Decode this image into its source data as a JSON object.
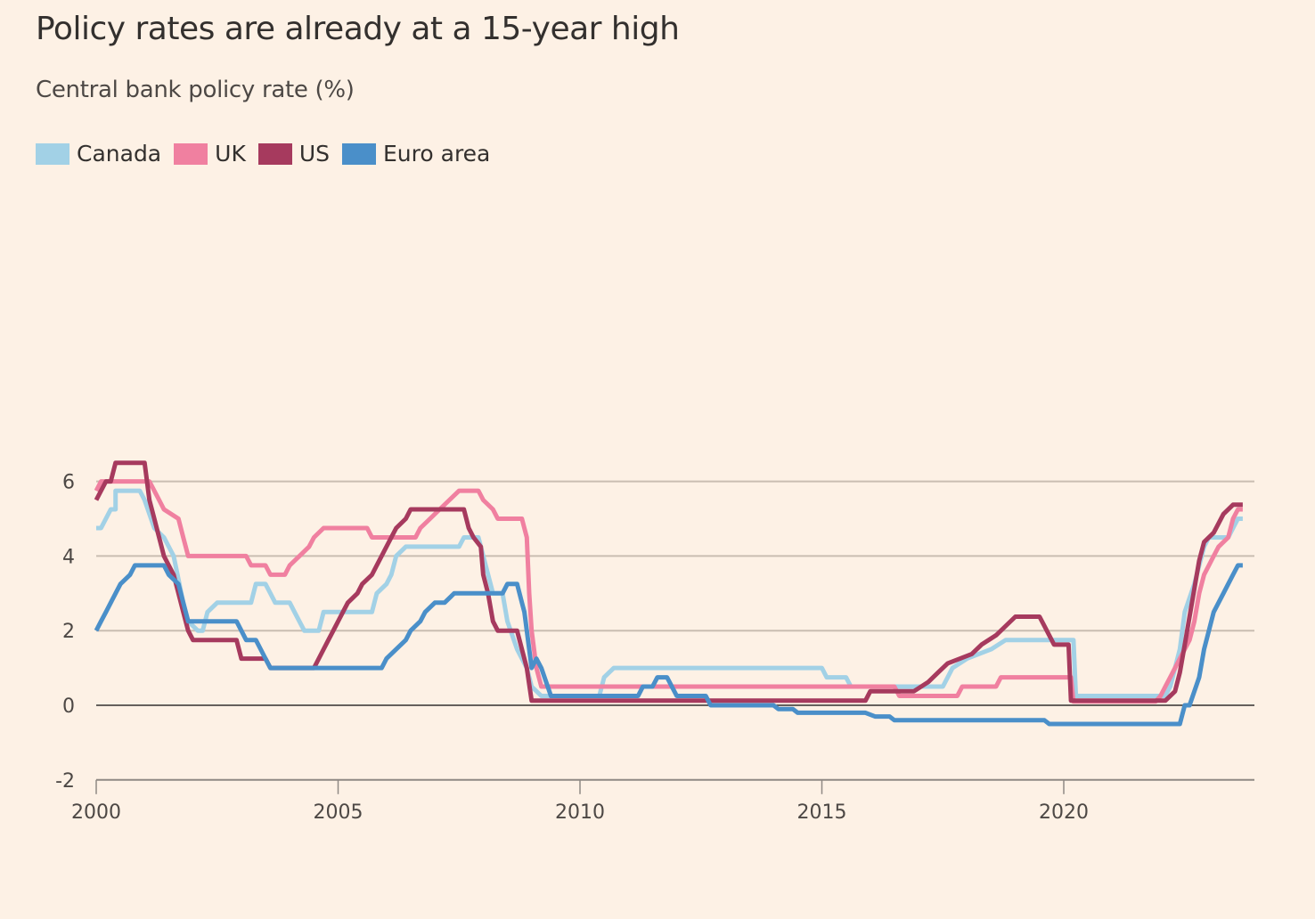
{
  "chart_data": {
    "type": "line",
    "title": "Policy rates are already at a 15-year high",
    "subtitle": "Central bank policy rate (%)",
    "xlabel": "",
    "ylabel": "",
    "xlim": [
      2000,
      2023.7
    ],
    "ylim": [
      -2,
      7
    ],
    "x_ticks": [
      2000,
      2005,
      2010,
      2015,
      2020
    ],
    "x_tick_labels": [
      "2000",
      "2005",
      "2010",
      "2015",
      "2020"
    ],
    "y_ticks": [
      -2,
      0,
      2,
      4,
      6
    ],
    "y_tick_labels": [
      "-2",
      "0",
      "2",
      "4",
      "6"
    ],
    "grid": true,
    "legend_position": "top-left",
    "series": [
      {
        "name": "Canada",
        "color": "#a2d1e6",
        "points": [
          [
            2000.0,
            4.75
          ],
          [
            2000.1,
            4.75
          ],
          [
            2000.3,
            5.25
          ],
          [
            2000.4,
            5.25
          ],
          [
            2000.4,
            5.75
          ],
          [
            2000.9,
            5.75
          ],
          [
            2001.0,
            5.5
          ],
          [
            2001.2,
            4.75
          ],
          [
            2001.4,
            4.5
          ],
          [
            2001.6,
            4.0
          ],
          [
            2001.8,
            2.75
          ],
          [
            2001.9,
            2.25
          ],
          [
            2002.1,
            2.0
          ],
          [
            2002.2,
            2.0
          ],
          [
            2002.3,
            2.5
          ],
          [
            2002.5,
            2.75
          ],
          [
            2003.2,
            2.75
          ],
          [
            2003.3,
            3.25
          ],
          [
            2003.5,
            3.25
          ],
          [
            2003.6,
            3.0
          ],
          [
            2003.7,
            2.75
          ],
          [
            2004.0,
            2.75
          ],
          [
            2004.1,
            2.5
          ],
          [
            2004.3,
            2.0
          ],
          [
            2004.6,
            2.0
          ],
          [
            2004.7,
            2.5
          ],
          [
            2005.7,
            2.5
          ],
          [
            2005.8,
            3.0
          ],
          [
            2006.0,
            3.25
          ],
          [
            2006.1,
            3.5
          ],
          [
            2006.2,
            4.0
          ],
          [
            2006.4,
            4.25
          ],
          [
            2007.5,
            4.25
          ],
          [
            2007.6,
            4.5
          ],
          [
            2007.9,
            4.5
          ],
          [
            2007.95,
            4.25
          ],
          [
            2008.0,
            4.0
          ],
          [
            2008.2,
            3.0
          ],
          [
            2008.4,
            3.0
          ],
          [
            2008.5,
            2.25
          ],
          [
            2008.7,
            1.5
          ],
          [
            2008.9,
            1.0
          ],
          [
            2009.0,
            0.5
          ],
          [
            2009.2,
            0.25
          ],
          [
            2010.4,
            0.25
          ],
          [
            2010.5,
            0.75
          ],
          [
            2010.7,
            1.0
          ],
          [
            2015.0,
            1.0
          ],
          [
            2015.1,
            0.75
          ],
          [
            2015.5,
            0.75
          ],
          [
            2015.6,
            0.5
          ],
          [
            2017.5,
            0.5
          ],
          [
            2017.6,
            0.75
          ],
          [
            2017.7,
            1.0
          ],
          [
            2018.0,
            1.25
          ],
          [
            2018.5,
            1.5
          ],
          [
            2018.8,
            1.75
          ],
          [
            2020.2,
            1.75
          ],
          [
            2020.25,
            0.25
          ],
          [
            2022.1,
            0.25
          ],
          [
            2022.2,
            0.5
          ],
          [
            2022.3,
            1.0
          ],
          [
            2022.4,
            1.5
          ],
          [
            2022.5,
            2.5
          ],
          [
            2022.7,
            3.25
          ],
          [
            2022.8,
            3.75
          ],
          [
            2022.9,
            4.25
          ],
          [
            2023.0,
            4.5
          ],
          [
            2023.4,
            4.5
          ],
          [
            2023.5,
            4.75
          ],
          [
            2023.6,
            5.0
          ],
          [
            2023.7,
            5.0
          ]
        ]
      },
      {
        "name": "UK",
        "color": "#f080a0",
        "points": [
          [
            2000.0,
            5.75
          ],
          [
            2000.1,
            6.0
          ],
          [
            2001.1,
            6.0
          ],
          [
            2001.2,
            5.75
          ],
          [
            2001.3,
            5.5
          ],
          [
            2001.4,
            5.25
          ],
          [
            2001.7,
            5.0
          ],
          [
            2001.8,
            4.5
          ],
          [
            2001.9,
            4.0
          ],
          [
            2003.1,
            4.0
          ],
          [
            2003.2,
            3.75
          ],
          [
            2003.5,
            3.75
          ],
          [
            2003.6,
            3.5
          ],
          [
            2003.9,
            3.5
          ],
          [
            2004.0,
            3.75
          ],
          [
            2004.2,
            4.0
          ],
          [
            2004.4,
            4.25
          ],
          [
            2004.5,
            4.5
          ],
          [
            2004.7,
            4.75
          ],
          [
            2005.6,
            4.75
          ],
          [
            2005.7,
            4.5
          ],
          [
            2006.6,
            4.5
          ],
          [
            2006.7,
            4.75
          ],
          [
            2006.9,
            5.0
          ],
          [
            2007.1,
            5.25
          ],
          [
            2007.3,
            5.5
          ],
          [
            2007.5,
            5.75
          ],
          [
            2007.9,
            5.75
          ],
          [
            2008.0,
            5.5
          ],
          [
            2008.2,
            5.25
          ],
          [
            2008.3,
            5.0
          ],
          [
            2008.8,
            5.0
          ],
          [
            2008.9,
            4.5
          ],
          [
            2008.95,
            3.0
          ],
          [
            2009.0,
            2.0
          ],
          [
            2009.05,
            1.5
          ],
          [
            2009.1,
            1.0
          ],
          [
            2009.2,
            0.5
          ],
          [
            2016.5,
            0.5
          ],
          [
            2016.6,
            0.25
          ],
          [
            2017.8,
            0.25
          ],
          [
            2017.9,
            0.5
          ],
          [
            2018.6,
            0.5
          ],
          [
            2018.7,
            0.75
          ],
          [
            2020.15,
            0.75
          ],
          [
            2020.2,
            0.1
          ],
          [
            2021.9,
            0.1
          ],
          [
            2022.0,
            0.25
          ],
          [
            2022.1,
            0.5
          ],
          [
            2022.2,
            0.75
          ],
          [
            2022.4,
            1.25
          ],
          [
            2022.6,
            1.75
          ],
          [
            2022.7,
            2.25
          ],
          [
            2022.8,
            3.0
          ],
          [
            2022.9,
            3.5
          ],
          [
            2023.1,
            4.0
          ],
          [
            2023.2,
            4.25
          ],
          [
            2023.4,
            4.5
          ],
          [
            2023.5,
            5.0
          ],
          [
            2023.6,
            5.25
          ],
          [
            2023.7,
            5.25
          ]
        ]
      },
      {
        "name": "US",
        "color": "#a63a5e",
        "points": [
          [
            2000.0,
            5.5
          ],
          [
            2000.1,
            5.75
          ],
          [
            2000.2,
            6.0
          ],
          [
            2000.3,
            6.0
          ],
          [
            2000.4,
            6.5
          ],
          [
            2001.0,
            6.5
          ],
          [
            2001.05,
            6.0
          ],
          [
            2001.1,
            5.5
          ],
          [
            2001.2,
            5.0
          ],
          [
            2001.3,
            4.5
          ],
          [
            2001.4,
            4.0
          ],
          [
            2001.5,
            3.75
          ],
          [
            2001.6,
            3.5
          ],
          [
            2001.7,
            3.0
          ],
          [
            2001.8,
            2.5
          ],
          [
            2001.9,
            2.0
          ],
          [
            2002.0,
            1.75
          ],
          [
            2002.9,
            1.75
          ],
          [
            2003.0,
            1.25
          ],
          [
            2003.5,
            1.25
          ],
          [
            2003.6,
            1.0
          ],
          [
            2004.5,
            1.0
          ],
          [
            2004.6,
            1.25
          ],
          [
            2004.7,
            1.5
          ],
          [
            2004.8,
            1.75
          ],
          [
            2004.9,
            2.0
          ],
          [
            2005.1,
            2.5
          ],
          [
            2005.2,
            2.75
          ],
          [
            2005.4,
            3.0
          ],
          [
            2005.5,
            3.25
          ],
          [
            2005.7,
            3.5
          ],
          [
            2005.8,
            3.75
          ],
          [
            2006.0,
            4.25
          ],
          [
            2006.1,
            4.5
          ],
          [
            2006.2,
            4.75
          ],
          [
            2006.4,
            5.0
          ],
          [
            2006.5,
            5.25
          ],
          [
            2007.6,
            5.25
          ],
          [
            2007.7,
            4.75
          ],
          [
            2007.8,
            4.5
          ],
          [
            2007.95,
            4.25
          ],
          [
            2008.0,
            3.5
          ],
          [
            2008.1,
            3.0
          ],
          [
            2008.2,
            2.25
          ],
          [
            2008.3,
            2.0
          ],
          [
            2008.7,
            2.0
          ],
          [
            2008.8,
            1.5
          ],
          [
            2008.9,
            1.0
          ],
          [
            2009.0,
            0.125
          ],
          [
            2015.9,
            0.125
          ],
          [
            2016.0,
            0.375
          ],
          [
            2016.9,
            0.375
          ],
          [
            2017.2,
            0.625
          ],
          [
            2017.4,
            0.875
          ],
          [
            2017.6,
            1.125
          ],
          [
            2018.1,
            1.375
          ],
          [
            2018.3,
            1.625
          ],
          [
            2018.6,
            1.875
          ],
          [
            2018.8,
            2.125
          ],
          [
            2019.0,
            2.375
          ],
          [
            2019.5,
            2.375
          ],
          [
            2019.6,
            2.125
          ],
          [
            2019.8,
            1.625
          ],
          [
            2020.1,
            1.625
          ],
          [
            2020.15,
            0.125
          ],
          [
            2022.1,
            0.125
          ],
          [
            2022.3,
            0.375
          ],
          [
            2022.4,
            0.875
          ],
          [
            2022.5,
            1.625
          ],
          [
            2022.6,
            2.375
          ],
          [
            2022.7,
            3.125
          ],
          [
            2022.8,
            3.875
          ],
          [
            2022.9,
            4.375
          ],
          [
            2023.1,
            4.625
          ],
          [
            2023.2,
            4.875
          ],
          [
            2023.3,
            5.125
          ],
          [
            2023.5,
            5.375
          ],
          [
            2023.7,
            5.375
          ]
        ]
      },
      {
        "name": "Euro area",
        "color": "#4a8fc9",
        "points": [
          [
            2000.0,
            2.0
          ],
          [
            2000.1,
            2.25
          ],
          [
            2000.2,
            2.5
          ],
          [
            2000.3,
            2.75
          ],
          [
            2000.5,
            3.25
          ],
          [
            2000.7,
            3.5
          ],
          [
            2000.8,
            3.75
          ],
          [
            2001.4,
            3.75
          ],
          [
            2001.5,
            3.5
          ],
          [
            2001.7,
            3.25
          ],
          [
            2001.8,
            2.75
          ],
          [
            2001.9,
            2.25
          ],
          [
            2002.9,
            2.25
          ],
          [
            2003.1,
            1.75
          ],
          [
            2003.3,
            1.75
          ],
          [
            2003.4,
            1.5
          ],
          [
            2003.5,
            1.25
          ],
          [
            2003.6,
            1.0
          ],
          [
            2005.9,
            1.0
          ],
          [
            2006.0,
            1.25
          ],
          [
            2006.2,
            1.5
          ],
          [
            2006.4,
            1.75
          ],
          [
            2006.5,
            2.0
          ],
          [
            2006.7,
            2.25
          ],
          [
            2006.8,
            2.5
          ],
          [
            2007.0,
            2.75
          ],
          [
            2007.2,
            2.75
          ],
          [
            2007.4,
            3.0
          ],
          [
            2008.4,
            3.0
          ],
          [
            2008.5,
            3.25
          ],
          [
            2008.7,
            3.25
          ],
          [
            2008.8,
            2.75
          ],
          [
            2008.85,
            2.5
          ],
          [
            2008.9,
            2.0
          ],
          [
            2008.95,
            1.5
          ],
          [
            2009.0,
            1.0
          ],
          [
            2009.1,
            1.25
          ],
          [
            2009.2,
            1.0
          ],
          [
            2009.4,
            0.25
          ],
          [
            2011.2,
            0.25
          ],
          [
            2011.3,
            0.5
          ],
          [
            2011.5,
            0.5
          ],
          [
            2011.6,
            0.75
          ],
          [
            2011.8,
            0.75
          ],
          [
            2012.0,
            0.25
          ],
          [
            2012.6,
            0.25
          ],
          [
            2012.7,
            0.0
          ],
          [
            2014.0,
            0.0
          ],
          [
            2014.1,
            -0.1
          ],
          [
            2014.4,
            -0.1
          ],
          [
            2014.5,
            -0.2
          ],
          [
            2015.9,
            -0.2
          ],
          [
            2016.1,
            -0.3
          ],
          [
            2016.4,
            -0.3
          ],
          [
            2016.5,
            -0.4
          ],
          [
            2019.6,
            -0.4
          ],
          [
            2019.7,
            -0.5
          ],
          [
            2022.4,
            -0.5
          ],
          [
            2022.5,
            0.0
          ],
          [
            2022.6,
            0.0
          ],
          [
            2022.8,
            0.75
          ],
          [
            2022.9,
            1.5
          ],
          [
            2023.0,
            2.0
          ],
          [
            2023.1,
            2.5
          ],
          [
            2023.3,
            3.0
          ],
          [
            2023.4,
            3.25
          ],
          [
            2023.5,
            3.5
          ],
          [
            2023.6,
            3.75
          ],
          [
            2023.7,
            3.75
          ]
        ]
      }
    ]
  }
}
